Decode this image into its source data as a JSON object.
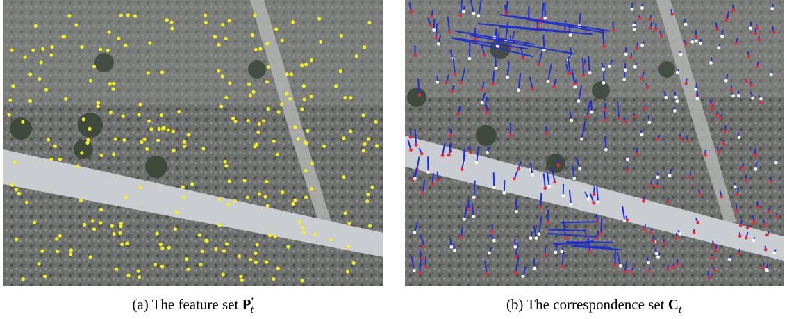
{
  "figure": {
    "panels": [
      {
        "caption": {
          "label": "(a)",
          "text": "The feature set",
          "symbol": "P",
          "prime": "′",
          "subscript": "t"
        }
      },
      {
        "caption": {
          "label": "(b)",
          "text": "The correspondence set",
          "symbol": "C",
          "subscript": "t"
        }
      }
    ]
  }
}
